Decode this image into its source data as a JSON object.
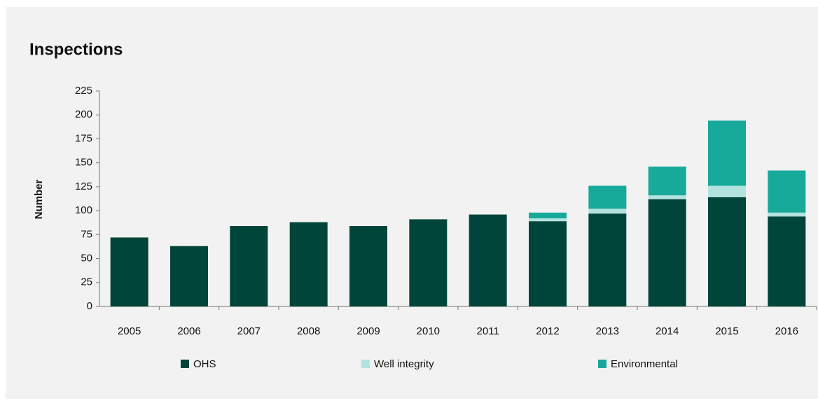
{
  "chart_data": {
    "type": "stacked_bar",
    "title": "Inspections",
    "y_label": "Number",
    "categories": [
      "2005",
      "2006",
      "2007",
      "2008",
      "2009",
      "2010",
      "2011",
      "2012",
      "2013",
      "2014",
      "2015",
      "2016"
    ],
    "series": [
      {
        "name": "OHS",
        "color": "#00453a",
        "values": [
          72,
          63,
          84,
          88,
          84,
          91,
          96,
          89,
          97,
          112,
          114,
          94
        ]
      },
      {
        "name": "Well integrity",
        "color": "#b3e3df",
        "values": [
          0,
          0,
          0,
          0,
          0,
          0,
          0,
          3,
          5,
          4,
          12,
          4
        ]
      },
      {
        "name": "Environmental",
        "color": "#17a99a",
        "values": [
          0,
          0,
          0,
          0,
          0,
          0,
          0,
          6,
          24,
          30,
          68,
          44
        ]
      }
    ],
    "ylim": [
      0,
      225
    ],
    "yticks": [
      0,
      25,
      50,
      75,
      100,
      125,
      150,
      175,
      200,
      225
    ],
    "grid": false
  }
}
